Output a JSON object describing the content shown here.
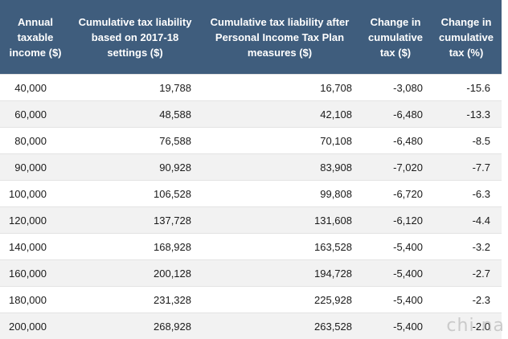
{
  "chart_data": {
    "type": "table",
    "columns": [
      "Annual taxable income ($)",
      "Cumulative tax liability based on 2017-18 settings ($)",
      "Cumulative tax liability after Personal Income Tax Plan measures ($)",
      "Change in cumulative tax ($)",
      "Change in cumulative tax (%)"
    ],
    "rows": [
      [
        "40,000",
        "19,788",
        "16,708",
        "-3,080",
        "-15.6"
      ],
      [
        "60,000",
        "48,588",
        "42,108",
        "-6,480",
        "-13.3"
      ],
      [
        "80,000",
        "76,588",
        "70,108",
        "-6,480",
        "-8.5"
      ],
      [
        "90,000",
        "90,928",
        "83,908",
        "-7,020",
        "-7.7"
      ],
      [
        "100,000",
        "106,528",
        "99,808",
        "-6,720",
        "-6.3"
      ],
      [
        "120,000",
        "137,728",
        "131,608",
        "-6,120",
        "-4.4"
      ],
      [
        "140,000",
        "168,928",
        "163,528",
        "-5,400",
        "-3.2"
      ],
      [
        "160,000",
        "200,128",
        "194,728",
        "-5,400",
        "-2.7"
      ],
      [
        "180,000",
        "231,328",
        "225,928",
        "-5,400",
        "-2.3"
      ],
      [
        "200,000",
        "268,928",
        "263,528",
        "-5,400",
        "-2.0"
      ]
    ]
  },
  "colors": {
    "header_bg": "#3f5d7d",
    "header_text": "#ffffff",
    "row_alt_bg": "#f2f2f2"
  },
  "watermark": "chi na"
}
